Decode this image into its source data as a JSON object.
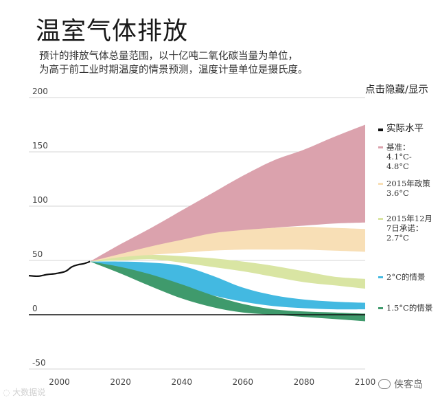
{
  "page": {
    "title": "温室气体排放",
    "subtitle_line1": "预计的排放气体总量范围，以十亿吨二氧化碳当量为单位，",
    "subtitle_line2": "为高于前工业时期温度的情景预测，温度计量单位是摄氏度。",
    "toggle_label": "点击隐藏/显示",
    "watermark_left": "大数据说",
    "watermark_right": "侠客岛"
  },
  "colors": {
    "actual": "#111111",
    "baseline": "#dba2ad",
    "policy2015": "#f8dfb6",
    "pledge": "#d9e5a3",
    "scenario2c": "#43b9e1",
    "scenario15c": "#3f9a6c",
    "grid": "#d4d4d4",
    "zero_line": "#111111"
  },
  "chart_data": {
    "type": "area",
    "xlim": [
      1990,
      2100
    ],
    "ylim": [
      -50,
      200
    ],
    "yticks": [
      -50,
      0,
      50,
      100,
      150,
      200
    ],
    "xticks": [
      2000,
      2020,
      2040,
      2060,
      2080,
      2100
    ],
    "grid": "horizontal",
    "legend_position": "right",
    "series": [
      {
        "key": "actual",
        "name": "实际水平",
        "kind": "line",
        "x": [
          1990,
          1993,
          1996,
          1999,
          2002,
          2004,
          2006,
          2008,
          2010
        ],
        "y": [
          36,
          35.5,
          37,
          38,
          40,
          44,
          46,
          47,
          49
        ]
      },
      {
        "key": "baseline",
        "name": "基准：\n4.1°C-\n4.8°C",
        "kind": "band",
        "x": [
          2010,
          2020,
          2030,
          2040,
          2050,
          2060,
          2070,
          2080,
          2090,
          2100
        ],
        "lower": [
          49,
          55,
          61,
          67,
          72,
          77,
          80,
          82,
          84,
          85
        ],
        "upper": [
          49,
          65,
          80,
          96,
          112,
          128,
          142,
          152,
          164,
          175
        ]
      },
      {
        "key": "policy2015",
        "name": "2015年政策\n3.6°C",
        "kind": "band",
        "x": [
          2010,
          2020,
          2030,
          2040,
          2050,
          2060,
          2070,
          2080,
          2090,
          2100
        ],
        "lower": [
          49,
          51,
          55,
          57,
          59,
          60,
          60,
          60,
          59,
          58
        ],
        "upper": [
          49,
          56,
          63,
          69,
          75,
          78,
          80,
          81,
          80,
          79
        ]
      },
      {
        "key": "pledge",
        "name": "2015年12月\n7日承诺：\n2.7°C",
        "kind": "band",
        "x": [
          2010,
          2020,
          2030,
          2040,
          2050,
          2060,
          2070,
          2080,
          2090,
          2100
        ],
        "lower": [
          49,
          50,
          51,
          48,
          44,
          40,
          35,
          30,
          27,
          24
        ],
        "upper": [
          49,
          53,
          55,
          54,
          52,
          49,
          45,
          40,
          35,
          33
        ]
      },
      {
        "key": "scenario2c",
        "name": "2°C的情景",
        "kind": "band",
        "x": [
          2010,
          2020,
          2030,
          2040,
          2050,
          2060,
          2070,
          2080,
          2090,
          2100
        ],
        "lower": [
          49,
          43,
          34,
          26,
          18,
          12,
          8,
          6,
          5,
          5
        ],
        "upper": [
          49,
          49,
          48,
          45,
          36,
          25,
          18,
          14,
          12,
          11
        ]
      },
      {
        "key": "scenario15c",
        "name": "1.5°C的情景",
        "kind": "band",
        "x": [
          2010,
          2020,
          2030,
          2040,
          2050,
          2060,
          2070,
          2080,
          2090,
          2100
        ],
        "lower": [
          49,
          38,
          26,
          15,
          7,
          2,
          0,
          -2,
          -4,
          -6
        ],
        "upper": [
          49,
          44,
          37,
          28,
          18,
          10,
          5,
          3,
          2,
          1
        ]
      }
    ]
  }
}
